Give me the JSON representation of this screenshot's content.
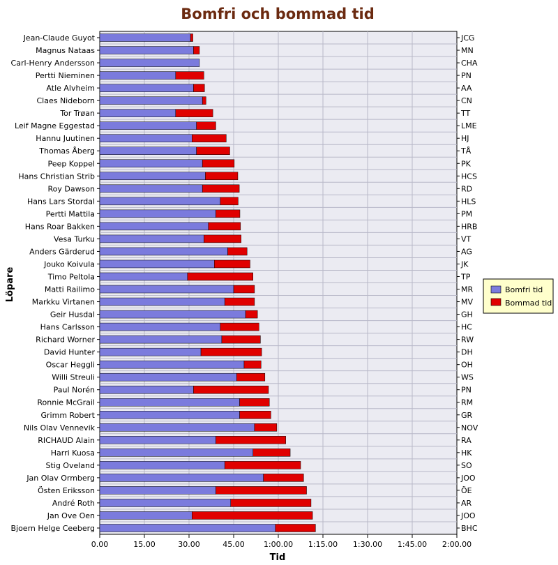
{
  "chart_data": {
    "type": "bar",
    "orientation": "horizontal",
    "stacked": true,
    "title": "Bomfri och bommad tid",
    "xlabel": "Tid",
    "ylabel": "Löpare",
    "xlim_minutes": [
      0,
      120
    ],
    "x_ticks": [
      "0.00",
      "15.00",
      "30.00",
      "45.00",
      "1:00.00",
      "1:15.00",
      "1:30.00",
      "1:45.00",
      "2:00.00"
    ],
    "grid": true,
    "legend_position": "right",
    "categories": [
      "Jean-Claude Guyot",
      "Magnus Nataas",
      "Carl-Henry Andersson",
      "Pertti Nieminen",
      "Atle Alvheim",
      "Claes Nideborn",
      "Tor Trøan",
      "Leif Magne Eggestad",
      "Hannu Juutinen",
      "Thomas Åberg",
      "Peep Koppel",
      "Hans Christian Strib",
      "Roy Dawson",
      "Hans Lars Stordal",
      "Pertti Mattila",
      "Hans Roar Bakken",
      "Vesa Turku",
      "Anders Gärderud",
      "Jouko Koivula",
      "Timo Peltola",
      "Matti Railimo",
      "Markku Virtanen",
      "Geir Husdal",
      "Hans Carlsson",
      "Richard Worner",
      "David Hunter",
      "Oscar Heggli",
      "Willi Streuli",
      "Paul Norén",
      "Ronnie McGrail",
      "Grimm Robert",
      "Nils Olav Vennevik",
      "RICHAUD Alain",
      "Harri Kuosa",
      "Stig Oveland",
      "Jan Olav Ormberg",
      "Östen Eriksson",
      "André Roth",
      "Jan Ove Oen",
      "Bjoern Helge Ceeberg"
    ],
    "right_labels": [
      "JCG",
      "MN",
      "CHA",
      "PN",
      "AA",
      "CN",
      "TT",
      "LME",
      "HJ",
      "TÅ",
      "PK",
      "HCS",
      "RD",
      "HLS",
      "PM",
      "HRB",
      "VT",
      "AG",
      "JK",
      "TP",
      "MR",
      "MV",
      "GH",
      "HC",
      "RW",
      "DH",
      "OH",
      "WS",
      "PN",
      "RM",
      "GR",
      "NOV",
      "RA",
      "HK",
      "SO",
      "JOO",
      "ÖE",
      "AR",
      "JOO",
      "BHC"
    ],
    "series": [
      {
        "name": "Bomfri tid",
        "color": "#7b7bdd",
        "values": [
          30.5,
          31.5,
          33.5,
          25.5,
          31.5,
          34.5,
          25.5,
          32.5,
          31.0,
          32.5,
          34.5,
          35.5,
          34.5,
          40.5,
          39.0,
          36.5,
          35.0,
          43.0,
          38.5,
          29.5,
          45.0,
          42.0,
          49.0,
          40.5,
          41.0,
          34.0,
          48.5,
          46.0,
          31.5,
          47.0,
          47.0,
          52.0,
          39.0,
          51.5,
          42.0,
          55.0,
          39.0,
          44.0,
          31.0,
          59.0
        ]
      },
      {
        "name": "Bommad tid",
        "color": "#e00000",
        "values": [
          0.8,
          2.0,
          0,
          9.5,
          3.7,
          1.2,
          12.5,
          6.5,
          11.5,
          11.2,
          10.7,
          10.9,
          12.4,
          6.0,
          8.1,
          10.8,
          12.5,
          6.5,
          12.0,
          22.0,
          7.0,
          10.0,
          4.0,
          13.0,
          13.0,
          20.4,
          5.7,
          9.5,
          25.2,
          10.0,
          10.5,
          7.5,
          23.5,
          12.5,
          25.5,
          13.5,
          30.5,
          27.0,
          40.5,
          13.5
        ]
      }
    ]
  }
}
